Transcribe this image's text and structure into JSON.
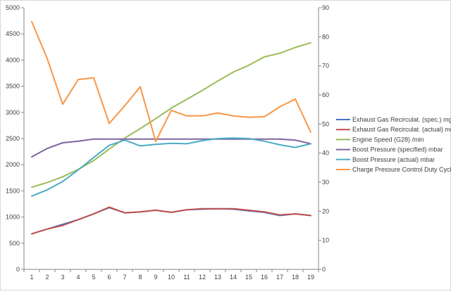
{
  "chart_data": {
    "type": "line",
    "title": "",
    "xlabel": "",
    "ylabel": "",
    "y2label": "",
    "x": [
      1,
      2,
      3,
      4,
      5,
      6,
      7,
      8,
      9,
      10,
      11,
      12,
      13,
      14,
      15,
      16,
      17,
      18,
      19
    ],
    "ylim": [
      0,
      5000
    ],
    "y_ticks": [
      0,
      500,
      1000,
      1500,
      2000,
      2500,
      3000,
      3500,
      4000,
      4500,
      5000
    ],
    "y2lim": [
      0,
      90
    ],
    "y2_ticks": [
      0,
      10,
      20,
      30,
      40,
      50,
      60,
      70,
      80,
      90
    ],
    "grid": false,
    "legend_position": "right",
    "series": [
      {
        "name": "Exhaust Gas Recirculat. (spec.)  mg/str",
        "axis": "left",
        "color": "#4472C4",
        "values": [
          680,
          770,
          860,
          950,
          1060,
          1180,
          1080,
          1100,
          1130,
          1090,
          1140,
          1150,
          1160,
          1150,
          1120,
          1090,
          1030,
          1060,
          1030
        ]
      },
      {
        "name": "Exhaust Gas Recirculat. (actual)  mg/str",
        "axis": "left",
        "color": "#C0504D",
        "values": [
          680,
          770,
          840,
          950,
          1060,
          1190,
          1080,
          1100,
          1130,
          1090,
          1140,
          1160,
          1160,
          1160,
          1130,
          1100,
          1040,
          1060,
          1030
        ]
      },
      {
        "name": "Engine Speed (G28)  /min",
        "axis": "left",
        "color": "#9BBB59",
        "values": [
          1570,
          1660,
          1770,
          1910,
          2080,
          2300,
          2510,
          2690,
          2880,
          3080,
          3250,
          3420,
          3600,
          3770,
          3900,
          4060,
          4130,
          4240,
          4330
        ]
      },
      {
        "name": "Boost Pressure (specified)  mbar",
        "axis": "left",
        "color": "#8064A2",
        "values": [
          2150,
          2310,
          2420,
          2450,
          2490,
          2490,
          2490,
          2490,
          2490,
          2490,
          2490,
          2490,
          2490,
          2490,
          2490,
          2490,
          2490,
          2470,
          2400
        ]
      },
      {
        "name": "Boost Pressure (actual)  mbar",
        "axis": "left",
        "color": "#4BACC6",
        "values": [
          1400,
          1520,
          1680,
          1900,
          2140,
          2370,
          2470,
          2360,
          2390,
          2410,
          2400,
          2460,
          2500,
          2510,
          2500,
          2450,
          2380,
          2330,
          2400
        ]
      },
      {
        "name": "Charge Pressure Control Duty Cycle  %",
        "axis": "right",
        "color": "#F79646",
        "values": [
          85.2,
          72.5,
          56.8,
          65.3,
          65.9,
          50.2,
          56.3,
          62.8,
          44.0,
          54.7,
          52.8,
          52.8,
          53.8,
          52.8,
          52.3,
          52.5,
          55.9,
          58.6,
          47.2
        ]
      }
    ]
  }
}
